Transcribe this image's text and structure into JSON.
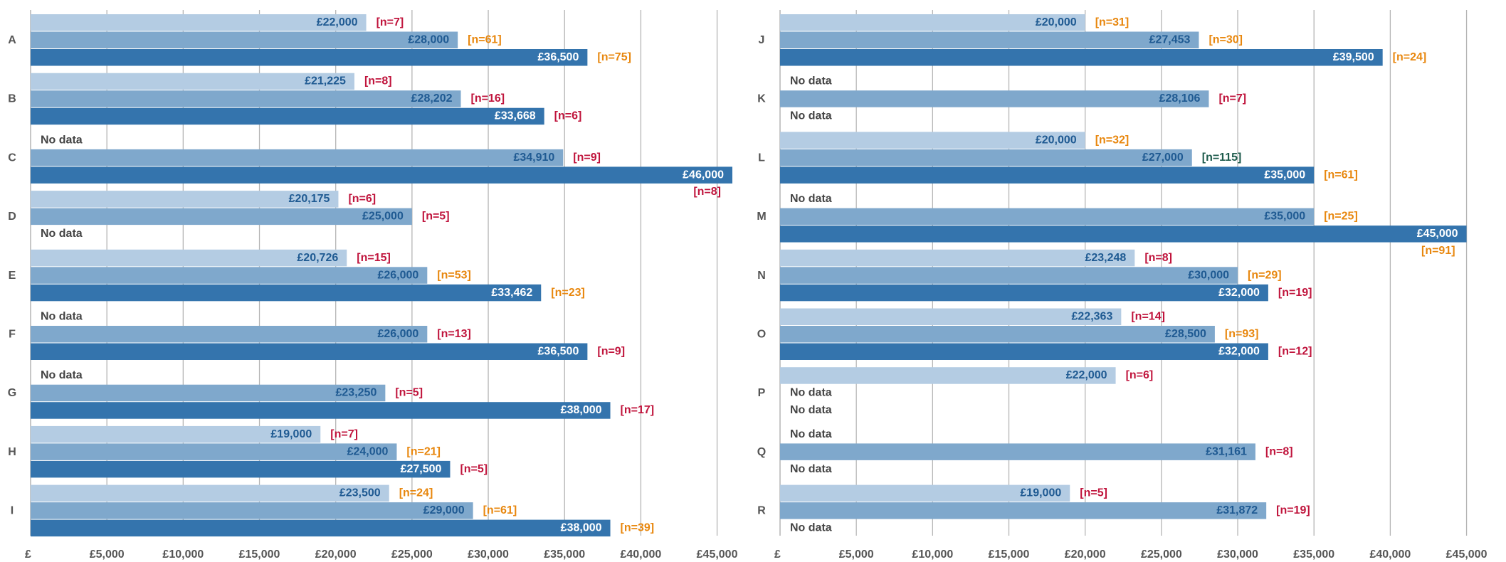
{
  "chart_data": [
    {
      "type": "bar",
      "orientation": "horizontal",
      "categories": [
        "A",
        "B",
        "C",
        "D",
        "E",
        "F",
        "G",
        "H",
        "I"
      ],
      "series": [
        {
          "color": "#b4cce3",
          "values": [
            22000,
            21225,
            null,
            20175,
            20726,
            null,
            null,
            19000,
            23500
          ],
          "value_labels": [
            "£22,000",
            "£21,225",
            "No data",
            "£20,175",
            "£20,726",
            "No data",
            "No data",
            "£19,000",
            "£23,500"
          ],
          "n_labels": [
            "[n=7]",
            "[n=8]",
            null,
            "[n=6]",
            "[n=15]",
            null,
            null,
            "[n=7]",
            "[n=24]"
          ],
          "n_colors": [
            "#c0143c",
            "#c0143c",
            null,
            "#c0143c",
            "#c0143c",
            null,
            null,
            "#c0143c",
            "#e8870e"
          ]
        },
        {
          "color": "#7fa8cc",
          "values": [
            28000,
            28202,
            34910,
            25000,
            26000,
            26000,
            23250,
            24000,
            29000
          ],
          "value_labels": [
            "£28,000",
            "£28,202",
            "£34,910",
            "£25,000",
            "£26,000",
            "£26,000",
            "£23,250",
            "£24,000",
            "£29,000"
          ],
          "n_labels": [
            "[n=61]",
            "[n=16]",
            "[n=9]",
            "[n=5]",
            "[n=53]",
            "[n=13]",
            "[n=5]",
            "[n=21]",
            "[n=61]"
          ],
          "n_colors": [
            "#e8870e",
            "#c0143c",
            "#c0143c",
            "#c0143c",
            "#e8870e",
            "#c0143c",
            "#c0143c",
            "#e8870e",
            "#e8870e"
          ]
        },
        {
          "color": "#3474ad",
          "values": [
            36500,
            33668,
            46000,
            null,
            33462,
            36500,
            38000,
            27500,
            38000
          ],
          "value_labels": [
            "£36,500",
            "£33,668",
            "£46,000",
            "No data",
            "£33,462",
            "£36,500",
            "£38,000",
            "£27,500",
            "£38,000"
          ],
          "n_labels": [
            "[n=75]",
            "[n=6]",
            "[n=8]",
            null,
            "[n=23]",
            "[n=9]",
            "[n=17]",
            "[n=5]",
            "[n=39]"
          ],
          "n_colors": [
            "#e8870e",
            "#c0143c",
            "#c0143c",
            null,
            "#e8870e",
            "#c0143c",
            "#c0143c",
            "#c0143c",
            "#e8870e"
          ]
        }
      ],
      "xlim": [
        0,
        46000
      ],
      "xticks": [
        {
          "value": 0,
          "label": "£"
        },
        {
          "value": 5000,
          "label": "£5,000"
        },
        {
          "value": 10000,
          "label": "£10,000"
        },
        {
          "value": 15000,
          "label": "£15,000"
        },
        {
          "value": 20000,
          "label": "£20,000"
        },
        {
          "value": 25000,
          "label": "£25,000"
        },
        {
          "value": 30000,
          "label": "£30,000"
        },
        {
          "value": 35000,
          "label": "£35,000"
        },
        {
          "value": 40000,
          "label": "£40,000"
        },
        {
          "value": 45000,
          "label": "£45,000"
        }
      ],
      "grid": true
    },
    {
      "type": "bar",
      "orientation": "horizontal",
      "categories": [
        "J",
        "K",
        "L",
        "M",
        "N",
        "O",
        "P",
        "Q",
        "R"
      ],
      "series": [
        {
          "color": "#b4cce3",
          "values": [
            20000,
            null,
            20000,
            null,
            23248,
            22363,
            22000,
            null,
            19000
          ],
          "value_labels": [
            "£20,000",
            "No data",
            "£20,000",
            "No data",
            "£23,248",
            "£22,363",
            "£22,000",
            "No data",
            "£19,000"
          ],
          "n_labels": [
            "[n=31]",
            null,
            "[n=32]",
            null,
            "[n=8]",
            "[n=14]",
            "[n=6]",
            null,
            "[n=5]"
          ],
          "n_colors": [
            "#e8870e",
            null,
            "#e8870e",
            null,
            "#c0143c",
            "#c0143c",
            "#c0143c",
            null,
            "#c0143c"
          ]
        },
        {
          "color": "#7fa8cc",
          "values": [
            27453,
            28106,
            27000,
            35000,
            30000,
            28500,
            null,
            31161,
            31872
          ],
          "value_labels": [
            "£27,453",
            "£28,106",
            "£27,000",
            "£35,000",
            "£30,000",
            "£28,500",
            "No data",
            "£31,161",
            "£31,872"
          ],
          "n_labels": [
            "[n=30]",
            "[n=7]",
            "[n=115]",
            "[n=25]",
            "[n=29]",
            "[n=93]",
            null,
            "[n=8]",
            "[n=19]"
          ],
          "n_colors": [
            "#e8870e",
            "#c0143c",
            "#1e5b4c",
            "#e8870e",
            "#e8870e",
            "#e8870e",
            null,
            "#c0143c",
            "#c0143c"
          ]
        },
        {
          "color": "#3474ad",
          "values": [
            39500,
            null,
            35000,
            45000,
            32000,
            32000,
            null,
            null,
            null
          ],
          "value_labels": [
            "£39,500",
            "No data",
            "£35,000",
            "£45,000",
            "£32,000",
            "£32,000",
            "No data",
            "No data",
            "No data"
          ],
          "n_labels": [
            "[n=24]",
            null,
            "[n=61]",
            "[n=91]",
            "[n=19]",
            "[n=12]",
            null,
            null,
            null
          ],
          "n_colors": [
            "#e8870e",
            null,
            "#e8870e",
            "#e8870e",
            "#c0143c",
            "#c0143c",
            null,
            null,
            null
          ]
        }
      ],
      "xlim": [
        0,
        46000
      ],
      "xticks": [
        {
          "value": 0,
          "label": "£"
        },
        {
          "value": 5000,
          "label": "£5,000"
        },
        {
          "value": 10000,
          "label": "£10,000"
        },
        {
          "value": 15000,
          "label": "£15,000"
        },
        {
          "value": 20000,
          "label": "£20,000"
        },
        {
          "value": 25000,
          "label": "£25,000"
        },
        {
          "value": 30000,
          "label": "£30,000"
        },
        {
          "value": 35000,
          "label": "£35,000"
        },
        {
          "value": 40000,
          "label": "£40,000"
        },
        {
          "value": 45000,
          "label": "£45,000"
        }
      ],
      "grid": true
    }
  ]
}
